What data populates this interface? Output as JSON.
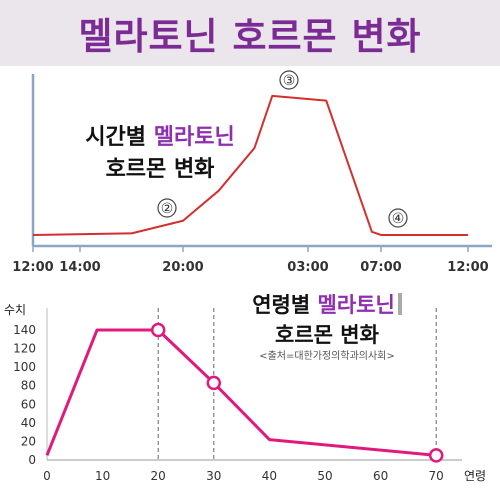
{
  "title": "멜라토닌 호르몬 변화",
  "colors": {
    "banner_bg": "#ebe5ec",
    "title": "#7b2b93",
    "accent": "#8f2fb0",
    "line1": "#d32f2f",
    "line2": "#e0197d"
  },
  "chart_data": [
    {
      "type": "line",
      "title_prefix": "시간별",
      "title_accent": "멜라토닌",
      "title_suffix": "호르몬 변화",
      "tick_labels": [
        "12:00",
        "14:00",
        "20:00",
        "03:00",
        "07:00",
        "12:00"
      ],
      "markers": [
        "②",
        "③",
        "④"
      ],
      "ylim": [
        0,
        1
      ],
      "grid": false,
      "points": [
        {
          "x": "12:00",
          "y": 0.07
        },
        {
          "x": "17:00",
          "y": 0.08
        },
        {
          "x": "20:00",
          "y": 0.16
        },
        {
          "x": "22:00",
          "y": 0.35
        },
        {
          "x": "00:00",
          "y": 0.62
        },
        {
          "x": "01:00",
          "y": 0.95
        },
        {
          "x": "04:00",
          "y": 0.92
        },
        {
          "x": "06:30",
          "y": 0.09
        },
        {
          "x": "07:00",
          "y": 0.07
        },
        {
          "x": "12:00",
          "y": 0.07
        }
      ]
    },
    {
      "type": "line",
      "title_prefix": "연령별",
      "title_accent": "멜라토닌",
      "title_suffix": "호르몬 변화",
      "source": "<출처=대한가정의학과의사회>",
      "ylabel": "수치",
      "xlabel": "연령",
      "x_ticks": [
        0,
        10,
        20,
        30,
        40,
        50,
        60,
        70
      ],
      "y_ticks": [
        0,
        20,
        40,
        60,
        80,
        100,
        120,
        140
      ],
      "xlim": [
        0,
        75
      ],
      "ylim": [
        0,
        150
      ],
      "grid": false,
      "x": [
        0,
        9,
        20,
        30,
        40,
        70
      ],
      "y": [
        5,
        140,
        140,
        83,
        22,
        5
      ],
      "highlighted_points": [
        {
          "x": 20,
          "y": 140
        },
        {
          "x": 30,
          "y": 83
        },
        {
          "x": 70,
          "y": 5
        }
      ]
    }
  ]
}
